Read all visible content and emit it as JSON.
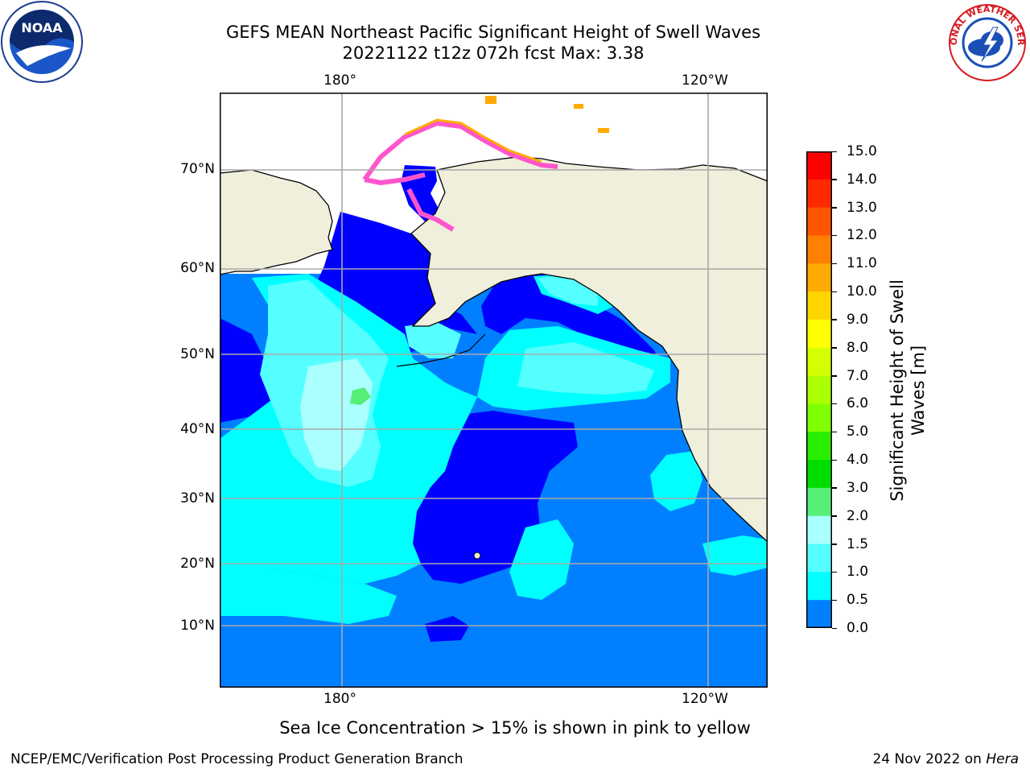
{
  "title_line1": "GEFS MEAN Northeast Pacific Significant Height of Swell Waves",
  "title_line2": "20221122 t12z 072h fcst   Max: 3.38",
  "lon_labels": [
    "180°",
    "120°W"
  ],
  "lat_labels": [
    "70°N",
    "60°N",
    "50°N",
    "40°N",
    "30°N",
    "20°N",
    "10°N"
  ],
  "colorbar": {
    "title_line1": "Significant Height of Swell",
    "title_line2": "Waves [m]",
    "ticks": [
      "15.0",
      "14.0",
      "13.0",
      "12.0",
      "11.0",
      "10.0",
      "9.0",
      "8.0",
      "7.0",
      "6.0",
      "5.0",
      "4.0",
      "3.0",
      "2.0",
      "1.5",
      "1.0",
      "0.5",
      "0.0"
    ],
    "colors": [
      "#ff0000",
      "#ff2a00",
      "#ff5500",
      "#ff8000",
      "#ffaa00",
      "#ffd500",
      "#ffff00",
      "#d4ff00",
      "#aaff00",
      "#80ff00",
      "#2aee00",
      "#00dd00",
      "#55ee77",
      "#aaffff",
      "#55ffff",
      "#00ffff",
      "#0080ff",
      "#0000ff"
    ]
  },
  "ocean_colors": {
    "deep_blue": "#0000ff",
    "blue": "#0080ff",
    "cyan": "#00ffff",
    "light_cyan": "#55ffff",
    "pale_cyan": "#aaffff",
    "green": "#55ee77",
    "land": "#efefdc",
    "ice": "#ff55cc"
  },
  "note": "Sea Ice Concentration > 15% is shown in pink to yellow",
  "footer_left": "NCEP/EMC/Verification Post Processing Product Generation Branch",
  "footer_right_prefix": "24 Nov 2022 on ",
  "footer_right_host": "Hera",
  "logo_left": "NOAA",
  "logo_right": "NATIONAL WEATHER SERVICE"
}
